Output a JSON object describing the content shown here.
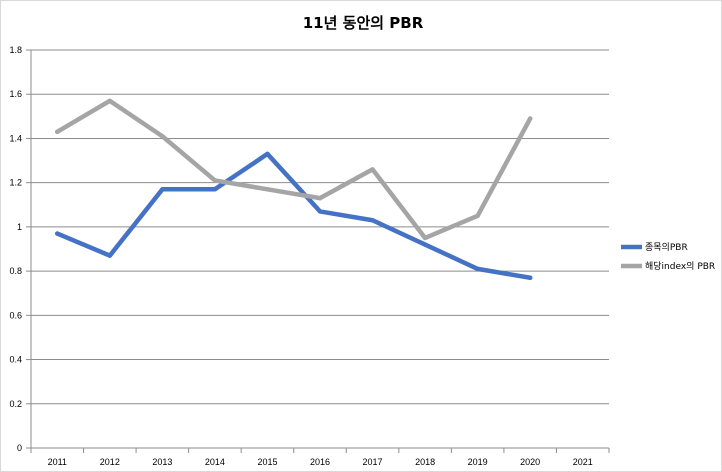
{
  "chart_data": {
    "type": "line",
    "title": "11년 동안의 PBR",
    "xlabel": "",
    "ylabel": "",
    "categories": [
      "2011",
      "2012",
      "2013",
      "2014",
      "2015",
      "2016",
      "2017",
      "2018",
      "2019",
      "2020",
      "2021"
    ],
    "y_ticks": [
      "0",
      "0.2",
      "0.4",
      "0.6",
      "0.8",
      "1",
      "1.2",
      "1.4",
      "1.6",
      "1.8"
    ],
    "ylim": [
      0,
      1.8
    ],
    "grid": true,
    "legend_position": "right",
    "series": [
      {
        "name": "종목의PBR",
        "color": "#4472c4",
        "values": [
          0.97,
          0.87,
          1.17,
          1.17,
          1.33,
          1.07,
          1.03,
          0.92,
          0.81,
          0.77,
          null
        ]
      },
      {
        "name": "해당index의 PBR",
        "color": "#a5a5a5",
        "values": [
          1.43,
          1.57,
          1.41,
          1.21,
          1.17,
          1.13,
          1.26,
          0.95,
          1.05,
          1.49,
          null
        ]
      }
    ]
  }
}
